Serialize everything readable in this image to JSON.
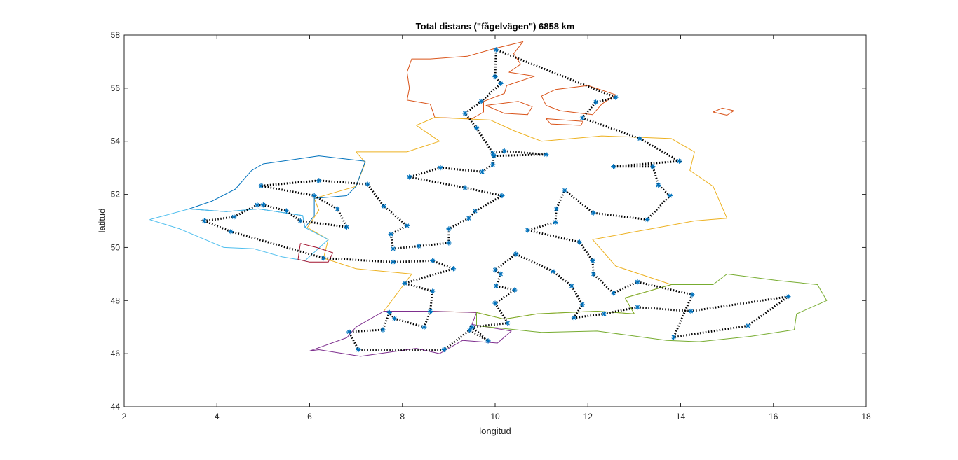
{
  "chart_data": {
    "type": "scatter",
    "title": "Total distans (\"fågelvägen\") 6858 km",
    "xlabel": "longitud",
    "ylabel": "latitud",
    "xlim": [
      2,
      18
    ],
    "ylim": [
      44,
      58
    ],
    "xticks": [
      2,
      4,
      6,
      8,
      10,
      12,
      14,
      16,
      18
    ],
    "yticks": [
      44,
      46,
      48,
      50,
      52,
      54,
      56,
      58
    ],
    "grid": false,
    "legend": "none",
    "route": {
      "marker": "asterisk",
      "marker_color": "#0072BD",
      "line_style": "dotted",
      "line_color": "#000000",
      "closed": true,
      "x": [
        10.02,
        10.0,
        10.12,
        9.7,
        9.35,
        9.6,
        9.95,
        10.2,
        11.1,
        9.97,
        9.95,
        9.72,
        8.82,
        8.15,
        9.35,
        10.15,
        9.57,
        9.43,
        9.0,
        9.0,
        8.35,
        7.8,
        7.75,
        8.1,
        7.6,
        7.25,
        6.2,
        4.95,
        6.1,
        6.6,
        6.8,
        5.8,
        5.5,
        5.0,
        4.87,
        4.37,
        3.73,
        4.3,
        6.3,
        7.8,
        8.65,
        9.1,
        8.05,
        8.65,
        8.6,
        8.47,
        7.83,
        7.72,
        7.58,
        6.85,
        7.05,
        8.9,
        9.45,
        9.85,
        9.5,
        10.27,
        10.0,
        10.42,
        10.02,
        10.12,
        10.0,
        10.45,
        11.25,
        11.65,
        11.88,
        11.7,
        12.35,
        13.07,
        14.22,
        16.32,
        15.45,
        13.85,
        14.25,
        13.07,
        12.55,
        12.12,
        12.1,
        11.82,
        10.7,
        11.3,
        11.32,
        11.5,
        12.12,
        13.28,
        13.77,
        13.52,
        13.4,
        12.55,
        13.97,
        13.12,
        11.88,
        12.17,
        12.6
      ],
      "y": [
        57.45,
        56.43,
        56.17,
        55.5,
        55.05,
        54.5,
        53.55,
        53.63,
        53.5,
        53.45,
        53.12,
        52.85,
        53.0,
        52.65,
        52.25,
        51.95,
        51.37,
        51.1,
        50.7,
        50.17,
        50.05,
        49.95,
        50.5,
        50.82,
        51.55,
        52.38,
        52.52,
        52.32,
        51.95,
        51.45,
        50.77,
        51.0,
        51.38,
        51.6,
        51.6,
        51.15,
        51.0,
        50.6,
        49.6,
        49.45,
        49.5,
        49.2,
        48.65,
        48.35,
        47.6,
        47.0,
        47.32,
        47.55,
        46.9,
        46.82,
        46.15,
        46.15,
        46.88,
        46.48,
        47.0,
        47.15,
        47.9,
        48.4,
        48.55,
        49.0,
        49.15,
        49.75,
        49.1,
        48.55,
        47.85,
        47.35,
        47.5,
        47.75,
        47.6,
        48.15,
        47.05,
        46.62,
        48.22,
        48.7,
        48.28,
        49.0,
        49.5,
        50.2,
        50.65,
        50.95,
        51.45,
        52.15,
        51.3,
        51.05,
        51.95,
        52.35,
        53.05,
        53.05,
        53.25,
        54.1,
        54.88,
        55.47,
        55.65
      ]
    },
    "borders": [
      {
        "name": "Danmark",
        "color": "#D95319"
      },
      {
        "name": "Tyskland",
        "color": "#EDB120"
      },
      {
        "name": "Nederländerna",
        "color": "#0072BD"
      },
      {
        "name": "Belgien",
        "color": "#4DBEEE"
      },
      {
        "name": "Luxemburg",
        "color": "#A2142F"
      },
      {
        "name": "Schweiz",
        "color": "#7E2F8E"
      },
      {
        "name": "Österrike",
        "color": "#77AC30"
      }
    ]
  }
}
